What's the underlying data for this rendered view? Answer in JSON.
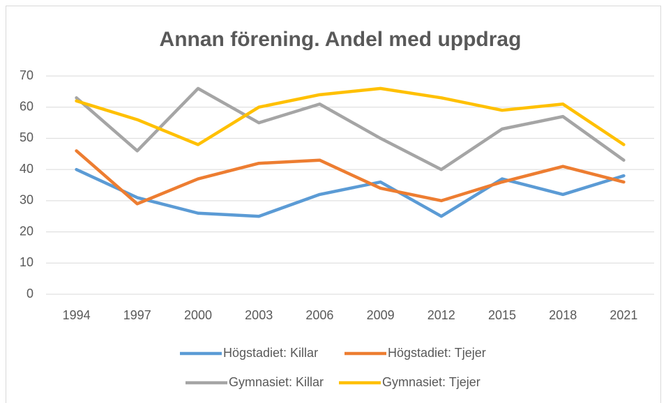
{
  "chart_data": {
    "type": "line",
    "title": "Annan förening. Andel med uppdrag",
    "categories": [
      "1994",
      "1997",
      "2000",
      "2003",
      "2006",
      "2009",
      "2012",
      "2015",
      "2018",
      "2021"
    ],
    "series": [
      {
        "name": "Högstadiet: Killar",
        "color": "#5b9bd5",
        "values": [
          40,
          31,
          26,
          25,
          32,
          36,
          25,
          37,
          32,
          38
        ]
      },
      {
        "name": "Högstadiet: Tjejer",
        "color": "#ed7d31",
        "values": [
          46,
          29,
          37,
          42,
          43,
          34,
          30,
          36,
          41,
          36
        ]
      },
      {
        "name": "Gymnasiet: Killar",
        "color": "#a5a5a5",
        "values": [
          63,
          46,
          66,
          55,
          61,
          50,
          40,
          53,
          57,
          43
        ]
      },
      {
        "name": "Gymnasiet: Tjejer",
        "color": "#ffc000",
        "values": [
          62,
          56,
          48,
          60,
          64,
          66,
          63,
          59,
          61,
          48
        ]
      }
    ],
    "ylim": [
      0,
      70
    ],
    "yticks": [
      0,
      10,
      20,
      30,
      40,
      50,
      60,
      70
    ],
    "grid": true,
    "legend": "bottom"
  }
}
